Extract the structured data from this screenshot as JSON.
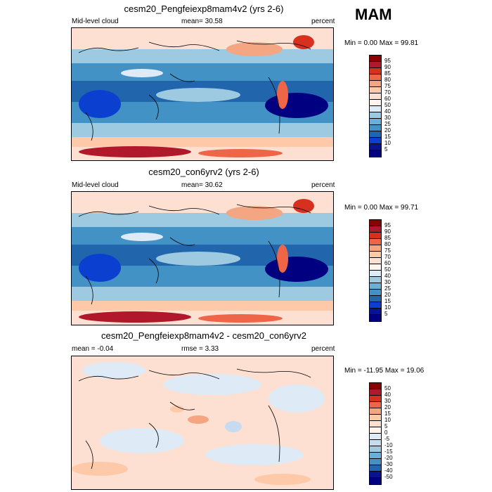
{
  "season": "MAM",
  "panels": [
    {
      "title": "cesm20_Pengfeiexp8mam4v2 (yrs 2-6)",
      "left_label": "Mid-level cloud",
      "center_label": "mean=  30.58",
      "right_label": "percent",
      "minmax": "Min =   0.00 Max =  99.81",
      "levels": [
        "95",
        "90",
        "85",
        "80",
        "75",
        "70",
        "60",
        "50",
        "40",
        "30",
        "25",
        "20",
        "15",
        "10",
        "5"
      ],
      "colors": [
        "#8b0000",
        "#b2182b",
        "#d7301f",
        "#ef6548",
        "#f4a582",
        "#fdc9a8",
        "#fde0d2",
        "#fff5ee",
        "#deebf7",
        "#9ecae1",
        "#6baed6",
        "#4292c6",
        "#2166ac",
        "#0b3fcf",
        "#08148f",
        "#000080"
      ]
    },
    {
      "title": "cesm20_con6yrv2 (yrs 2-6)",
      "left_label": "Mid-level cloud",
      "center_label": "mean=  30.62",
      "right_label": "percent",
      "minmax": "Min =   0.00 Max =  99.71",
      "levels": [
        "95",
        "90",
        "85",
        "80",
        "75",
        "70",
        "60",
        "50",
        "40",
        "30",
        "25",
        "20",
        "15",
        "10",
        "5"
      ],
      "colors": [
        "#8b0000",
        "#b2182b",
        "#d7301f",
        "#ef6548",
        "#f4a582",
        "#fdc9a8",
        "#fde0d2",
        "#fff5ee",
        "#deebf7",
        "#9ecae1",
        "#6baed6",
        "#4292c6",
        "#2166ac",
        "#0b3fcf",
        "#08148f",
        "#000080"
      ]
    },
    {
      "title": "cesm20_Pengfeiexp8mam4v2 - cesm20_con6yrv2",
      "left_label": "mean =  -0.04",
      "center_label": "rmse =   3.33",
      "right_label": "percent",
      "minmax": "Min = -11.95 Max =  19.06",
      "levels": [
        "50",
        "40",
        "30",
        "20",
        "15",
        "10",
        "5",
        "0",
        "-5",
        "-10",
        "-15",
        "-20",
        "-30",
        "-40",
        "-50"
      ],
      "colors": [
        "#8b0000",
        "#b2182b",
        "#d7301f",
        "#ef6548",
        "#f4a582",
        "#fdc9a8",
        "#fde0d2",
        "#fff5ee",
        "#deebf7",
        "#c6dbef",
        "#9ecae1",
        "#6baed6",
        "#4292c6",
        "#2166ac",
        "#08148f",
        "#000080"
      ]
    }
  ]
}
